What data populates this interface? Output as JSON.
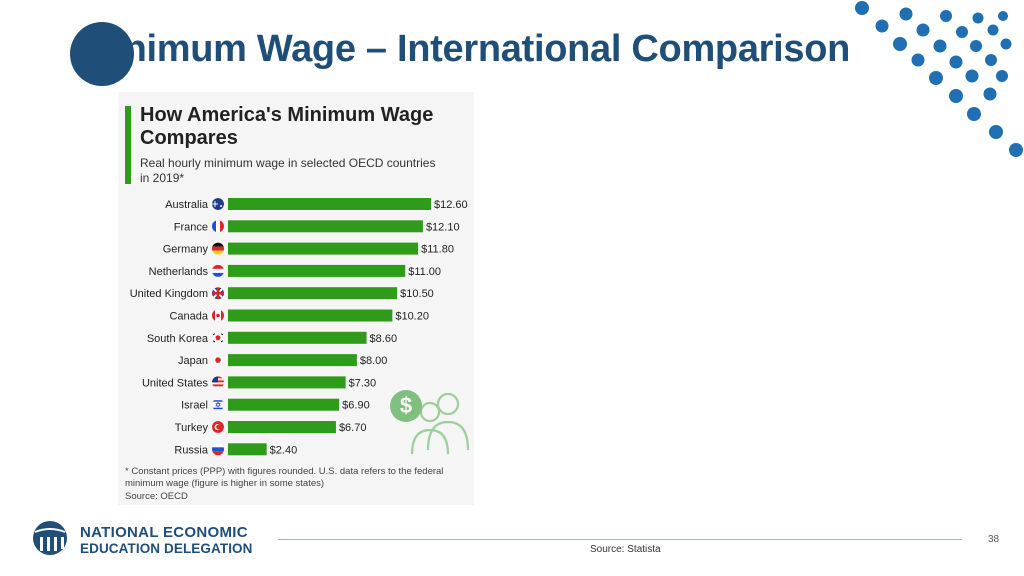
{
  "slide": {
    "title": "Minimum Wage – International Comparison",
    "source": "Source: Statista",
    "page_number": "38",
    "logo": {
      "line1": "NATIONAL ECONOMIC",
      "line2": "EDUCATION DELEGATION"
    },
    "colors": {
      "primary": "#1f4e79",
      "accent": "#2e9b1a"
    }
  },
  "chart_data": {
    "type": "bar",
    "orientation": "horizontal",
    "title": "How America's Minimum Wage Compares",
    "subtitle": "Real hourly minimum wage in selected OECD countries in 2019*",
    "footnote": "* Constant prices (PPP) with figures rounded. U.S. data refers to the federal minimum wage (figure is higher in some states)",
    "source": "Source: OECD",
    "categories": [
      "Australia",
      "France",
      "Germany",
      "Netherlands",
      "United Kingdom",
      "Canada",
      "South Korea",
      "Japan",
      "United States",
      "Israel",
      "Turkey",
      "Russia"
    ],
    "values": [
      12.6,
      12.1,
      11.8,
      11.0,
      10.5,
      10.2,
      8.6,
      8.0,
      7.3,
      6.9,
      6.7,
      2.4
    ],
    "labels": [
      "$12.60",
      "$12.10",
      "$11.80",
      "$11.00",
      "$10.50",
      "$10.20",
      "$8.60",
      "$8.00",
      "$7.30",
      "$6.90",
      "$6.70",
      "$2.40"
    ],
    "flag_icons": [
      "australia-flag-icon",
      "france-flag-icon",
      "germany-flag-icon",
      "netherlands-flag-icon",
      "united-kingdom-flag-icon",
      "canada-flag-icon",
      "south-korea-flag-icon",
      "japan-flag-icon",
      "united-states-flag-icon",
      "israel-flag-icon",
      "turkey-flag-icon",
      "russia-flag-icon"
    ],
    "bar_color": "#2e9b1a",
    "xlim": [
      0,
      12.6
    ],
    "grid": false,
    "legend": "none"
  }
}
